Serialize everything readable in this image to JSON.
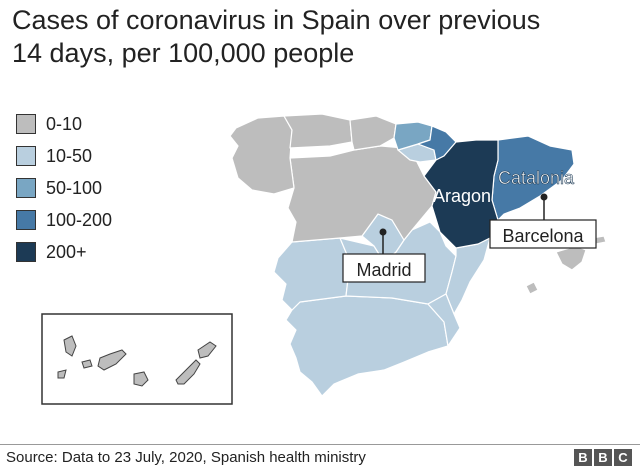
{
  "title": {
    "line1": "Cases of coronavirus in Spain over previous",
    "line2": "14 days, per 100,000 people"
  },
  "legend": [
    {
      "label": "0-10",
      "color": "#bdbdbd"
    },
    {
      "label": "10-50",
      "color": "#b9cfdf"
    },
    {
      "label": "50-100",
      "color": "#79a6c3"
    },
    {
      "label": "100-200",
      "color": "#4679a6"
    },
    {
      "label": "200+",
      "color": "#1c3a55"
    }
  ],
  "regions": {
    "aragon": {
      "label": "Aragon",
      "category": "200+"
    },
    "catalonia": {
      "label": "Catalonia",
      "category": "100-200"
    },
    "navarra": {
      "category": "100-200"
    },
    "basque_country": {
      "category": "50-100"
    },
    "la_rioja": {
      "category": "10-50"
    },
    "madrid": {
      "category": "10-50"
    },
    "castilla_y_leon": {
      "category": "0-10"
    },
    "galicia": {
      "category": "0-10"
    },
    "asturias": {
      "category": "0-10"
    },
    "cantabria": {
      "category": "0-10"
    },
    "castilla_la_mancha": {
      "category": "10-50"
    },
    "extremadura": {
      "category": "10-50"
    },
    "andalucia": {
      "category": "10-50"
    },
    "valencia": {
      "category": "10-50"
    },
    "murcia": {
      "category": "10-50"
    },
    "balearic_islands": {
      "category": "0-10"
    },
    "canary_islands": {
      "category": "0-10"
    }
  },
  "callouts": {
    "madrid": "Madrid",
    "barcelona": "Barcelona"
  },
  "source": "Source: Data to 23 July, 2020, Spanish health ministry",
  "logo": [
    "B",
    "B",
    "C"
  ]
}
